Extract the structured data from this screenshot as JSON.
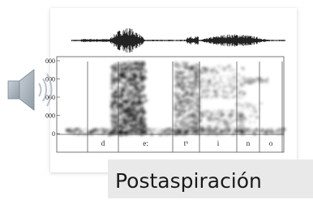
{
  "figure": {
    "y_labels": [
      "000",
      "000",
      "000",
      "000",
      "0"
    ],
    "segments": [
      "d",
      "e:",
      "tʰ",
      "i",
      "n",
      "o"
    ]
  },
  "caption": "Postaspiración"
}
